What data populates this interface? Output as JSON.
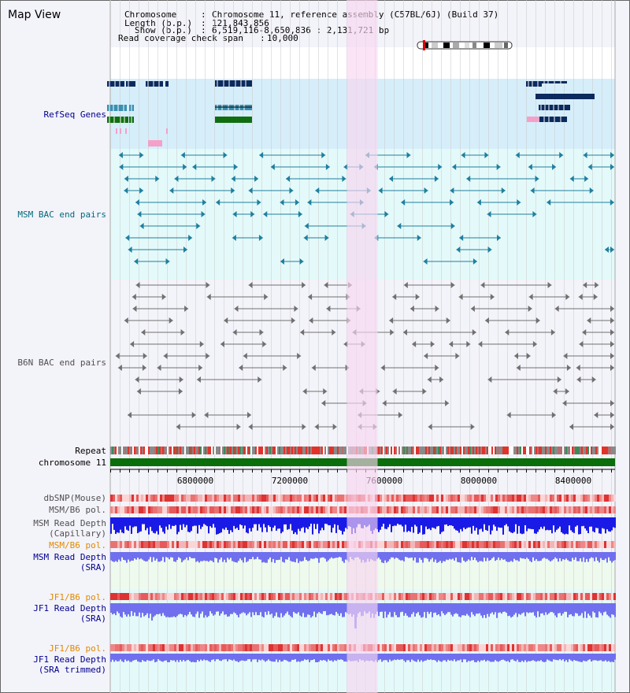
{
  "page": {
    "title": "Map View"
  },
  "info": {
    "chromosome_label": "Chromosome",
    "chromosome_value": "Chromosome 11, reference assembly (C57BL/6J) (Build 37)",
    "length_label": "Length (b.p.)",
    "length_value": "121,843,856",
    "show_label": "Show (b.p.)",
    "show_value": "6,519,116-8,650,836 : 2,131,721 bp",
    "span_label": "Read coverage check span",
    "span_value": "10,000"
  },
  "axis": {
    "start": 6519116,
    "end": 8650836,
    "ticks": [
      "6800000",
      "7200000",
      "7600000",
      "8000000",
      "8400000"
    ],
    "highlight_start": 7520000,
    "highlight_end": 7650000
  },
  "tracks": {
    "refseq": {
      "label": "RefSeq Genes"
    },
    "msm_bac": {
      "label": "MSM BAC end pairs"
    },
    "b6n_bac": {
      "label": "B6N BAC end pairs"
    },
    "repeat": {
      "label": "Repeat"
    },
    "chromosome": {
      "label": "chromosome 11"
    },
    "dbsnp": {
      "label": "dbSNP(Mouse)"
    },
    "msm_b6_pol": {
      "label": "MSM/B6 pol."
    },
    "msm_depth_cap": {
      "label_line1": "MSM Read Depth",
      "label_line2": "(Capillary)"
    },
    "msm_b6_pol_2": {
      "label": "MSM/B6 pol."
    },
    "msm_depth_sra": {
      "label_line1": "MSM Read Depth",
      "label_line2": "(SRA)"
    },
    "jf1_b6_pol": {
      "label": "JF1/B6 pol."
    },
    "jf1_depth_sra": {
      "label_line1": "JF1 Read Depth",
      "label_line2": "(SRA)"
    },
    "jf1_b6_pol_2": {
      "label": "JF1/B6 pol."
    },
    "jf1_depth_trim": {
      "label_line1": "JF1 Read Depth",
      "label_line2": "(SRA trimmed)"
    }
  },
  "colors": {
    "refseq_bg": "#d6eefa",
    "bac_bg": "#e4fafa",
    "highlight": "#f8d6f0",
    "gene_navy": "#0b2a5e",
    "gene_teal": "#3a8fb0",
    "gene_green": "#106e10",
    "gene_pink": "#f4a0c8",
    "msm_feature": "#1f7f9f",
    "b6n_feature": "#707070",
    "chromosome_bar": "#0a6e0a",
    "depth_blue": "#1a1ae6",
    "depth_light": "#7070ee",
    "label_navy": "#00008b",
    "label_teal": "#006a7a",
    "label_orange": "#e08a00"
  }
}
